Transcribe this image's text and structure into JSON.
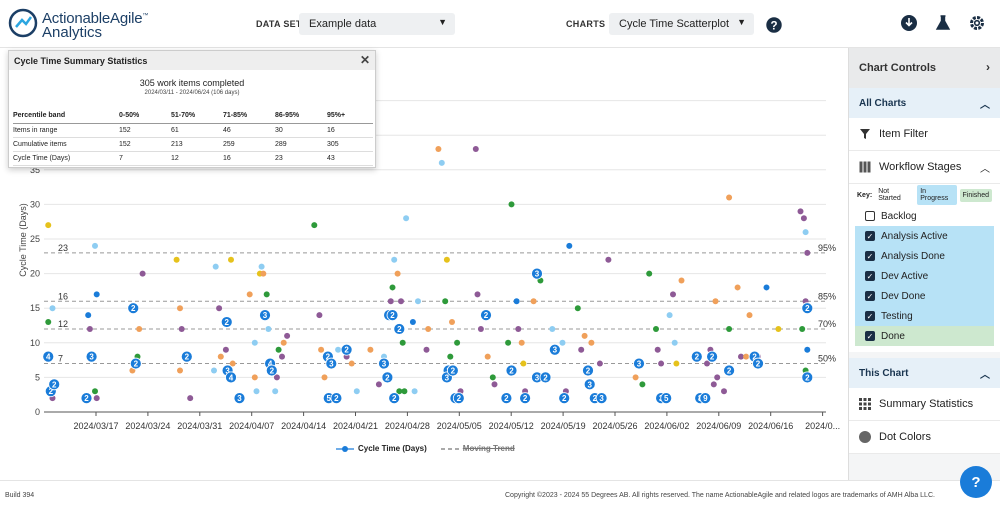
{
  "logo": {
    "line1": "ActionableAgile",
    "tm": "™",
    "line2": "Analytics"
  },
  "topbar": {
    "dataset_label": "DATA SET",
    "dataset_value": "Example data",
    "charts_label": "CHARTS",
    "charts_value": "Cycle Time Scatterplot"
  },
  "popup": {
    "title": "Cycle Time Summary Statistics",
    "completed": "305 work items completed",
    "range": "2024/03/11 - 2024/06/24 (106 days)",
    "headers": [
      "Percentile band",
      "0-50%",
      "51-70%",
      "71-85%",
      "86-95%",
      "95%+"
    ],
    "rows": [
      [
        "Items in range",
        "152",
        "61",
        "46",
        "30",
        "16"
      ],
      [
        "Cumulative items",
        "152",
        "213",
        "259",
        "289",
        "305"
      ],
      [
        "Cycle Time (Days)",
        "7",
        "12",
        "16",
        "23",
        "43"
      ]
    ]
  },
  "sidepanel": {
    "header": "Chart Controls",
    "all_charts": "All Charts",
    "item_filter": "Item Filter",
    "workflow_stages": "Workflow Stages",
    "key_label": "Key:",
    "key_items": [
      "Not Started",
      "In Progress",
      "Finished"
    ],
    "stages": [
      {
        "label": "Backlog",
        "checked": false,
        "state": "not-started"
      },
      {
        "label": "Analysis Active",
        "checked": true,
        "state": "in-progress"
      },
      {
        "label": "Analysis Done",
        "checked": true,
        "state": "in-progress"
      },
      {
        "label": "Dev Active",
        "checked": true,
        "state": "in-progress"
      },
      {
        "label": "Dev Done",
        "checked": true,
        "state": "in-progress"
      },
      {
        "label": "Testing",
        "checked": true,
        "state": "in-progress"
      },
      {
        "label": "Done",
        "checked": true,
        "state": "finished"
      }
    ],
    "this_chart": "This Chart",
    "summary_statistics": "Summary Statistics",
    "dot_colors": "Dot Colors"
  },
  "legend": {
    "series": "Cycle Time (Days)",
    "trend": "Moving Trend"
  },
  "footer": {
    "build": "Build 394",
    "copyright": "Copyright ©2023 - 2024 55 Degrees AB. All rights reserved. The name ActionableAgile and related logos are trademarks of AMH Alba LLC."
  },
  "help_label": "?",
  "colors": {
    "blue": "#1a7cd9",
    "light_blue": "#8ecdf2",
    "green": "#2e9a3a",
    "orange": "#f0a05a",
    "purple": "#8e5a96",
    "yellow": "#e6c21c",
    "grid": "#e6e6e6"
  },
  "chart_data": {
    "type": "scatter",
    "ylabel": "Cycle Time (Days)",
    "ylim": [
      0,
      38
    ],
    "yticks": [
      0,
      5,
      10,
      15,
      20,
      25,
      30,
      35
    ],
    "xticks": [
      "2024/03/17",
      "2024/03/24",
      "2024/03/31",
      "2024/04/07",
      "2024/04/14",
      "2024/04/21",
      "2024/04/28",
      "2024/05/05",
      "2024/05/12",
      "2024/05/19",
      "2024/05/26",
      "2024/06/02",
      "2024/06/09",
      "2024/06/16",
      "2024/0..."
    ],
    "percentiles": [
      {
        "label": "50%",
        "value": 7
      },
      {
        "label": "70%",
        "value": 12
      },
      {
        "label": "85%",
        "value": 16
      },
      {
        "label": "95%",
        "value": 23
      }
    ],
    "left_labels": [
      {
        "label": "7",
        "value": 7
      },
      {
        "label": "12",
        "value": 12
      },
      {
        "label": "16",
        "value": 16
      },
      {
        "label": "23",
        "value": 23
      }
    ],
    "multi_points": [
      {
        "day": 0.5,
        "y": 8,
        "count": "4"
      },
      {
        "day": 0.8,
        "y": 3,
        "count": "2"
      },
      {
        "day": 1.2,
        "y": 4,
        "count": "2"
      },
      {
        "day": 5.0,
        "y": 2,
        "count": "2"
      },
      {
        "day": 5.6,
        "y": 8,
        "count": "3"
      },
      {
        "day": 10.5,
        "y": 15,
        "count": "2"
      },
      {
        "day": 10.8,
        "y": 7,
        "count": "2"
      },
      {
        "day": 16.8,
        "y": 8,
        "count": "2"
      },
      {
        "day": 21.5,
        "y": 13,
        "count": "2"
      },
      {
        "day": 21.6,
        "y": 6,
        "count": "3"
      },
      {
        "day": 22.0,
        "y": 5,
        "count": "4"
      },
      {
        "day": 23.0,
        "y": 2,
        "count": "3"
      },
      {
        "day": 26.0,
        "y": 14,
        "count": "3"
      },
      {
        "day": 26.6,
        "y": 7,
        "count": "4"
      },
      {
        "day": 26.8,
        "y": 6,
        "count": "2"
      },
      {
        "day": 33.4,
        "y": 8,
        "count": "2"
      },
      {
        "day": 33.8,
        "y": 7,
        "count": "3"
      },
      {
        "day": 33.5,
        "y": 2,
        "count": "5"
      },
      {
        "day": 34.4,
        "y": 2,
        "count": "2"
      },
      {
        "day": 35.6,
        "y": 9,
        "count": "2"
      },
      {
        "day": 40.6,
        "y": 14,
        "count": "3"
      },
      {
        "day": 41.0,
        "y": 14,
        "count": "2"
      },
      {
        "day": 41.8,
        "y": 12,
        "count": "2"
      },
      {
        "day": 40.0,
        "y": 7,
        "count": "3"
      },
      {
        "day": 40.4,
        "y": 5,
        "count": "2"
      },
      {
        "day": 41.2,
        "y": 2,
        "count": "2"
      },
      {
        "day": 47.6,
        "y": 6,
        "count": "2"
      },
      {
        "day": 47.4,
        "y": 5,
        "count": "3"
      },
      {
        "day": 48.1,
        "y": 6,
        "count": "2"
      },
      {
        "day": 48.4,
        "y": 2,
        "count": "2"
      },
      {
        "day": 48.8,
        "y": 2,
        "count": "2"
      },
      {
        "day": 52.0,
        "y": 14,
        "count": "2"
      },
      {
        "day": 54.4,
        "y": 2,
        "count": "2"
      },
      {
        "day": 55.0,
        "y": 6,
        "count": "2"
      },
      {
        "day": 56.6,
        "y": 2,
        "count": "2"
      },
      {
        "day": 58.0,
        "y": 20,
        "count": "3"
      },
      {
        "day": 58.0,
        "y": 5,
        "count": "3"
      },
      {
        "day": 59.0,
        "y": 5,
        "count": "2"
      },
      {
        "day": 60.1,
        "y": 9,
        "count": "3"
      },
      {
        "day": 61.2,
        "y": 2,
        "count": "2"
      },
      {
        "day": 64.0,
        "y": 6,
        "count": "2"
      },
      {
        "day": 64.2,
        "y": 4,
        "count": "3"
      },
      {
        "day": 64.8,
        "y": 2,
        "count": "2"
      },
      {
        "day": 65.6,
        "y": 2,
        "count": "3"
      },
      {
        "day": 70.0,
        "y": 7,
        "count": "3"
      },
      {
        "day": 72.6,
        "y": 2,
        "count": "3"
      },
      {
        "day": 73.2,
        "y": 2,
        "count": "5"
      },
      {
        "day": 76.8,
        "y": 8,
        "count": "2"
      },
      {
        "day": 77.2,
        "y": 2,
        "count": "8"
      },
      {
        "day": 77.8,
        "y": 2,
        "count": "9"
      },
      {
        "day": 78.6,
        "y": 8,
        "count": "2"
      },
      {
        "day": 80.6,
        "y": 6,
        "count": "2"
      },
      {
        "day": 83.6,
        "y": 8,
        "count": "2"
      },
      {
        "day": 84.0,
        "y": 7,
        "count": "2"
      },
      {
        "day": 89.8,
        "y": 15,
        "count": "2"
      },
      {
        "day": 89.8,
        "y": 5,
        "count": "2"
      }
    ],
    "single_points": [
      {
        "day": 0.5,
        "y": 27,
        "color": "yellow"
      },
      {
        "day": 0.5,
        "y": 13,
        "color": "green"
      },
      {
        "day": 1.0,
        "y": 15,
        "color": "light_blue"
      },
      {
        "day": 1.0,
        "y": 2,
        "color": "purple"
      },
      {
        "day": 5.2,
        "y": 14,
        "color": "blue"
      },
      {
        "day": 5.4,
        "y": 12,
        "color": "purple"
      },
      {
        "day": 6.0,
        "y": 24,
        "color": "light_blue"
      },
      {
        "day": 6.2,
        "y": 17,
        "color": "blue"
      },
      {
        "day": 6.0,
        "y": 3,
        "color": "green"
      },
      {
        "day": 6.2,
        "y": 2,
        "color": "purple"
      },
      {
        "day": 10.4,
        "y": 6,
        "color": "orange"
      },
      {
        "day": 11.2,
        "y": 12,
        "color": "orange"
      },
      {
        "day": 11.6,
        "y": 20,
        "color": "purple"
      },
      {
        "day": 11.0,
        "y": 8,
        "color": "green"
      },
      {
        "day": 15.6,
        "y": 22,
        "color": "yellow"
      },
      {
        "day": 16.0,
        "y": 15,
        "color": "orange"
      },
      {
        "day": 16.2,
        "y": 12,
        "color": "purple"
      },
      {
        "day": 16.0,
        "y": 6,
        "color": "orange"
      },
      {
        "day": 17.2,
        "y": 2,
        "color": "purple"
      },
      {
        "day": 20.0,
        "y": 6,
        "color": "light_blue"
      },
      {
        "day": 20.2,
        "y": 21,
        "color": "light_blue"
      },
      {
        "day": 20.6,
        "y": 15,
        "color": "purple"
      },
      {
        "day": 20.8,
        "y": 8,
        "color": "orange"
      },
      {
        "day": 21.4,
        "y": 9,
        "color": "purple"
      },
      {
        "day": 22.0,
        "y": 22,
        "color": "yellow"
      },
      {
        "day": 22.2,
        "y": 7,
        "color": "orange"
      },
      {
        "day": 24.2,
        "y": 17,
        "color": "orange"
      },
      {
        "day": 24.8,
        "y": 10,
        "color": "light_blue"
      },
      {
        "day": 24.8,
        "y": 5,
        "color": "orange"
      },
      {
        "day": 25.0,
        "y": 3,
        "color": "light_blue"
      },
      {
        "day": 25.4,
        "y": 20,
        "color": "yellow"
      },
      {
        "day": 25.6,
        "y": 21,
        "color": "light_blue"
      },
      {
        "day": 25.8,
        "y": 20,
        "color": "orange"
      },
      {
        "day": 26.2,
        "y": 17,
        "color": "green"
      },
      {
        "day": 26.4,
        "y": 12,
        "color": "light_blue"
      },
      {
        "day": 27.2,
        "y": 3,
        "color": "light_blue"
      },
      {
        "day": 27.4,
        "y": 5,
        "color": "purple"
      },
      {
        "day": 27.6,
        "y": 9,
        "color": "green"
      },
      {
        "day": 28.0,
        "y": 8,
        "color": "purple"
      },
      {
        "day": 28.2,
        "y": 10,
        "color": "orange"
      },
      {
        "day": 28.6,
        "y": 11,
        "color": "purple"
      },
      {
        "day": 31.8,
        "y": 27,
        "color": "green"
      },
      {
        "day": 32.4,
        "y": 14,
        "color": "purple"
      },
      {
        "day": 32.6,
        "y": 9,
        "color": "orange"
      },
      {
        "day": 33.0,
        "y": 5,
        "color": "orange"
      },
      {
        "day": 34.6,
        "y": 9,
        "color": "light_blue"
      },
      {
        "day": 35.6,
        "y": 8,
        "color": "purple"
      },
      {
        "day": 36.2,
        "y": 7,
        "color": "orange"
      },
      {
        "day": 36.8,
        "y": 3,
        "color": "light_blue"
      },
      {
        "day": 38.4,
        "y": 9,
        "color": "orange"
      },
      {
        "day": 39.4,
        "y": 4,
        "color": "purple"
      },
      {
        "day": 40.0,
        "y": 8,
        "color": "light_blue"
      },
      {
        "day": 40.8,
        "y": 16,
        "color": "purple"
      },
      {
        "day": 41.0,
        "y": 18,
        "color": "green"
      },
      {
        "day": 41.2,
        "y": 22,
        "color": "light_blue"
      },
      {
        "day": 41.6,
        "y": 20,
        "color": "orange"
      },
      {
        "day": 41.8,
        "y": 3,
        "color": "green"
      },
      {
        "day": 42.0,
        "y": 16,
        "color": "purple"
      },
      {
        "day": 42.6,
        "y": 28,
        "color": "light_blue"
      },
      {
        "day": 42.2,
        "y": 10,
        "color": "green"
      },
      {
        "day": 42.4,
        "y": 3,
        "color": "green"
      },
      {
        "day": 43.4,
        "y": 13,
        "color": "blue"
      },
      {
        "day": 43.6,
        "y": 3,
        "color": "light_blue"
      },
      {
        "day": 44.0,
        "y": 16,
        "color": "light_blue"
      },
      {
        "day": 45.0,
        "y": 9,
        "color": "purple"
      },
      {
        "day": 45.2,
        "y": 12,
        "color": "orange"
      },
      {
        "day": 46.4,
        "y": 38,
        "color": "orange"
      },
      {
        "day": 46.8,
        "y": 36,
        "color": "light_blue"
      },
      {
        "day": 47.2,
        "y": 16,
        "color": "green"
      },
      {
        "day": 47.4,
        "y": 22,
        "color": "yellow"
      },
      {
        "day": 47.8,
        "y": 8,
        "color": "green"
      },
      {
        "day": 48.0,
        "y": 13,
        "color": "orange"
      },
      {
        "day": 48.6,
        "y": 10,
        "color": "green"
      },
      {
        "day": 49.0,
        "y": 3,
        "color": "purple"
      },
      {
        "day": 50.8,
        "y": 38,
        "color": "purple"
      },
      {
        "day": 51.0,
        "y": 17,
        "color": "purple"
      },
      {
        "day": 51.4,
        "y": 12,
        "color": "purple"
      },
      {
        "day": 52.2,
        "y": 8,
        "color": "orange"
      },
      {
        "day": 52.8,
        "y": 5,
        "color": "green"
      },
      {
        "day": 53.0,
        "y": 4,
        "color": "purple"
      },
      {
        "day": 54.6,
        "y": 10,
        "color": "green"
      },
      {
        "day": 55.0,
        "y": 30,
        "color": "green"
      },
      {
        "day": 55.6,
        "y": 16,
        "color": "blue"
      },
      {
        "day": 55.8,
        "y": 12,
        "color": "purple"
      },
      {
        "day": 56.2,
        "y": 10,
        "color": "orange"
      },
      {
        "day": 56.4,
        "y": 7,
        "color": "yellow"
      },
      {
        "day": 56.6,
        "y": 3,
        "color": "purple"
      },
      {
        "day": 57.6,
        "y": 16,
        "color": "orange"
      },
      {
        "day": 58.4,
        "y": 19,
        "color": "green"
      },
      {
        "day": 59.8,
        "y": 12,
        "color": "light_blue"
      },
      {
        "day": 61.0,
        "y": 10,
        "color": "light_blue"
      },
      {
        "day": 61.4,
        "y": 3,
        "color": "purple"
      },
      {
        "day": 61.8,
        "y": 24,
        "color": "blue"
      },
      {
        "day": 62.8,
        "y": 15,
        "color": "green"
      },
      {
        "day": 63.6,
        "y": 11,
        "color": "orange"
      },
      {
        "day": 63.2,
        "y": 9,
        "color": "purple"
      },
      {
        "day": 64.4,
        "y": 10,
        "color": "orange"
      },
      {
        "day": 65.4,
        "y": 7,
        "color": "purple"
      },
      {
        "day": 66.4,
        "y": 22,
        "color": "purple"
      },
      {
        "day": 69.6,
        "y": 5,
        "color": "orange"
      },
      {
        "day": 70.4,
        "y": 4,
        "color": "green"
      },
      {
        "day": 71.2,
        "y": 20,
        "color": "green"
      },
      {
        "day": 72.0,
        "y": 12,
        "color": "green"
      },
      {
        "day": 72.2,
        "y": 9,
        "color": "purple"
      },
      {
        "day": 72.6,
        "y": 7,
        "color": "purple"
      },
      {
        "day": 73.6,
        "y": 14,
        "color": "light_blue"
      },
      {
        "day": 74.0,
        "y": 17,
        "color": "purple"
      },
      {
        "day": 74.2,
        "y": 10,
        "color": "light_blue"
      },
      {
        "day": 74.4,
        "y": 7,
        "color": "yellow"
      },
      {
        "day": 75.0,
        "y": 19,
        "color": "orange"
      },
      {
        "day": 78.0,
        "y": 7,
        "color": "purple"
      },
      {
        "day": 78.4,
        "y": 9,
        "color": "purple"
      },
      {
        "day": 78.8,
        "y": 4,
        "color": "purple"
      },
      {
        "day": 79.0,
        "y": 16,
        "color": "orange"
      },
      {
        "day": 79.2,
        "y": 5,
        "color": "purple"
      },
      {
        "day": 80.0,
        "y": 3,
        "color": "purple"
      },
      {
        "day": 80.6,
        "y": 31,
        "color": "orange"
      },
      {
        "day": 80.6,
        "y": 12,
        "color": "green"
      },
      {
        "day": 81.6,
        "y": 18,
        "color": "orange"
      },
      {
        "day": 82.0,
        "y": 8,
        "color": "purple"
      },
      {
        "day": 82.6,
        "y": 8,
        "color": "orange"
      },
      {
        "day": 83.0,
        "y": 14,
        "color": "orange"
      },
      {
        "day": 84.0,
        "y": 8,
        "color": "purple"
      },
      {
        "day": 85.0,
        "y": 18,
        "color": "blue"
      },
      {
        "day": 86.4,
        "y": 12,
        "color": "yellow"
      },
      {
        "day": 89.0,
        "y": 29,
        "color": "purple"
      },
      {
        "day": 89.4,
        "y": 28,
        "color": "purple"
      },
      {
        "day": 89.6,
        "y": 26,
        "color": "light_blue"
      },
      {
        "day": 89.8,
        "y": 23,
        "color": "purple"
      },
      {
        "day": 89.6,
        "y": 16,
        "color": "purple"
      },
      {
        "day": 89.2,
        "y": 12,
        "color": "green"
      },
      {
        "day": 89.8,
        "y": 9,
        "color": "blue"
      },
      {
        "day": 89.6,
        "y": 6,
        "color": "green"
      }
    ]
  }
}
